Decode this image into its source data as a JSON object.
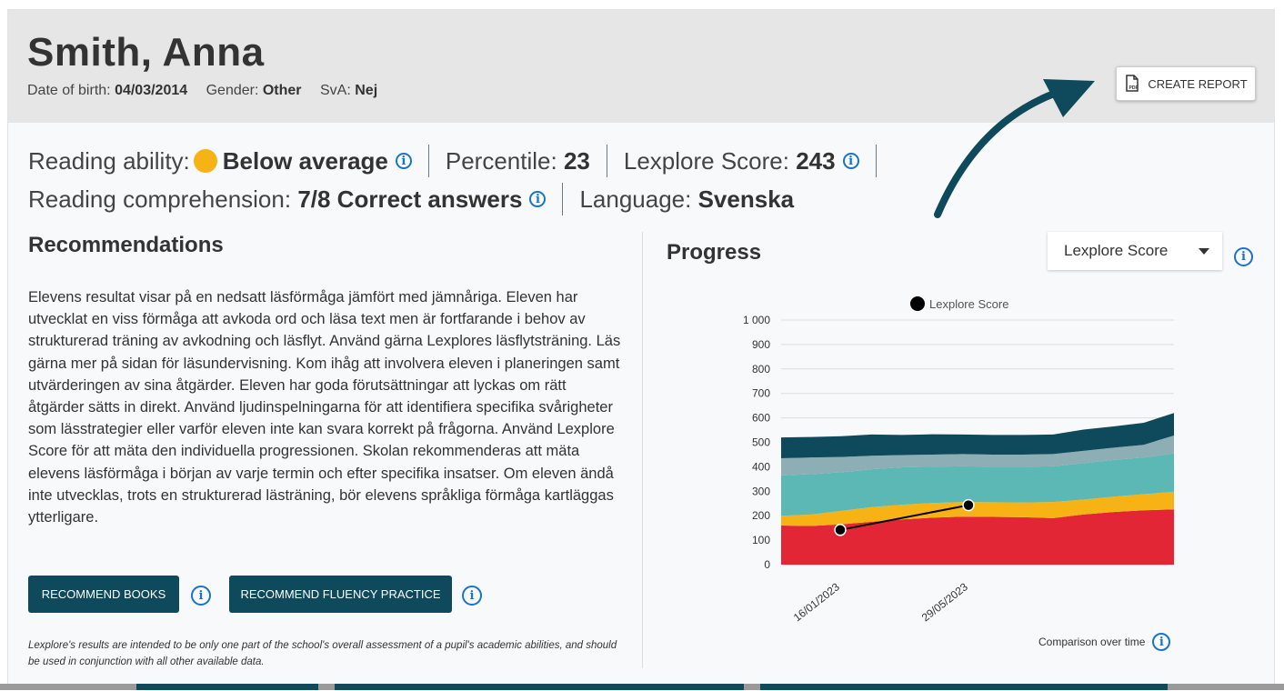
{
  "student": {
    "name": "Smith, Anna",
    "dob_label": "Date of birth:",
    "dob": "04/03/2014",
    "gender_label": "Gender:",
    "gender": "Other",
    "sva_label": "SvA:",
    "sva": "Nej"
  },
  "actions": {
    "create_report": "CREATE REPORT"
  },
  "stats": {
    "reading_ability_label": "Reading ability:",
    "reading_ability": "Below average",
    "reading_ability_color": "#f7b316",
    "percentile_label": "Percentile:",
    "percentile": "23",
    "lexplore_label": "Lexplore Score:",
    "lexplore": "243",
    "comprehension_label": "Reading comprehension:",
    "comprehension": "7/8 Correct answers",
    "language_label": "Language:",
    "language": "Svenska"
  },
  "recommendations": {
    "title": "Recommendations",
    "text": "Elevens resultat visar på en nedsatt läsförmåga jämfört med jämnåriga. Eleven har utvecklat en viss förmåga att avkoda ord och läsa text men är fortfarande i behov av strukturerad träning av avkodning och läsflyt. Använd gärna Lexplores läsflytsträning. Läs gärna mer på sidan för läsundervisning. Kom ihåg att involvera eleven i planeringen samt utvärderingen av sina åtgärder. Eleven har goda förutsättningar att lyckas om rätt åtgärder sätts in direkt. Använd ljudinspelningarna för att identifiera specifika svårigheter som lässtrategier eller varför eleven inte kan svara korrekt på frågorna. Använd Lexplore Score för att mäta den individuella progressionen. Skolan rekommenderas att mäta elevens läsförmåga i början av varje termin och efter specifika insatser. Om eleven ändå inte utvecklas, trots en strukturerad lästräning, bör elevens språkliga förmåga kartläggas ytterligare.",
    "btn_books": "RECOMMEND BOOKS",
    "btn_fluency": "RECOMMEND FLUENCY PRACTICE",
    "disclaimer": "Lexplore's results are intended to be only one part of the school's overall assessment of a pupil's academic abilities, and should be used in conjunction with all other available data."
  },
  "progress": {
    "title": "Progress",
    "selected_metric": "Lexplore Score",
    "comparison_label": "Comparison over time"
  },
  "chart_data": {
    "type": "area",
    "legend": "top-center",
    "grid": true,
    "ylim": [
      0,
      1000
    ],
    "yticks": [
      "0",
      "100",
      "200",
      "300",
      "400",
      "500",
      "600",
      "700",
      "800",
      "900",
      "1 000"
    ],
    "xtick_labels": [
      "16/01/2023",
      "29/05/2023"
    ],
    "bands": [
      {
        "color": "#e32636",
        "upper": [
          160,
          158,
          165,
          175,
          185,
          192,
          196,
          195,
          194,
          190,
          205,
          215,
          222,
          226
        ]
      },
      {
        "color": "#f7b316",
        "upper": [
          200,
          205,
          220,
          235,
          245,
          252,
          256,
          255,
          254,
          256,
          266,
          278,
          288,
          298
        ]
      },
      {
        "color": "#5bb8b4",
        "upper": [
          365,
          370,
          378,
          390,
          398,
          400,
          402,
          400,
          400,
          402,
          415,
          428,
          438,
          455
        ]
      },
      {
        "color": "#8eaeb5",
        "upper": [
          435,
          438,
          440,
          445,
          448,
          450,
          452,
          450,
          450,
          452,
          465,
          478,
          490,
          528
        ]
      },
      {
        "color": "#0e4a5c",
        "upper": [
          520,
          522,
          525,
          532,
          530,
          533,
          532,
          530,
          530,
          532,
          552,
          565,
          580,
          620
        ]
      }
    ],
    "series": [
      {
        "name": "Lexplore Score",
        "color": "#000000",
        "points": [
          {
            "x": "16/01/2023",
            "y": 142
          },
          {
            "x": "29/05/2023",
            "y": 243
          }
        ]
      }
    ]
  }
}
